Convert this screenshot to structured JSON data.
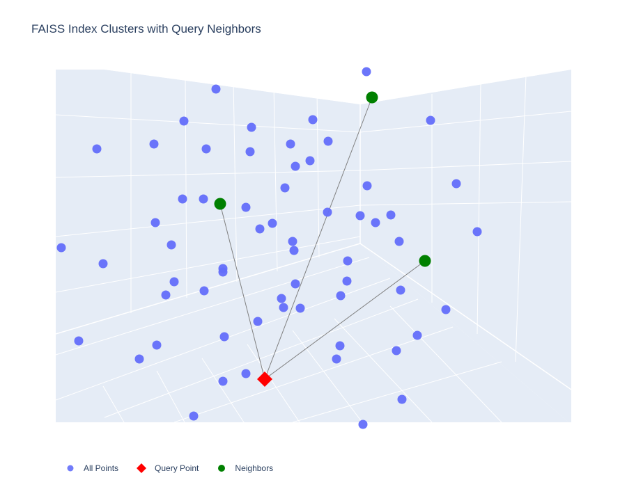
{
  "chart_data": {
    "type": "scatter",
    "subtype": "3d-scatter",
    "title": "FAISS Index Clusters with Query Neighbors",
    "grid": true,
    "legend_position": "bottom-left, horizontal",
    "series": [
      {
        "name": "All Points",
        "marker": "circle",
        "color": "#636efa",
        "points": [
          [
            526,
            103
          ],
          [
            310,
            128
          ],
          [
            264,
            174
          ],
          [
            361,
            183
          ],
          [
            449,
            172
          ],
          [
            618,
            173
          ],
          [
            139,
            214
          ],
          [
            221,
            207
          ],
          [
            296,
            214
          ],
          [
            359,
            218
          ],
          [
            417,
            207
          ],
          [
            471,
            203
          ],
          [
            424,
            239
          ],
          [
            445,
            231
          ],
          [
            409,
            270
          ],
          [
            527,
            267
          ],
          [
            655,
            264
          ],
          [
            262,
            286
          ],
          [
            292,
            286
          ],
          [
            353,
            298
          ],
          [
            470,
            305
          ],
          [
            517,
            310
          ],
          [
            561,
            309
          ],
          [
            539,
            320
          ],
          [
            223,
            320
          ],
          [
            391,
            321
          ],
          [
            373,
            329
          ],
          [
            685,
            333
          ],
          [
            88,
            356
          ],
          [
            246,
            352
          ],
          [
            420,
            347
          ],
          [
            573,
            347
          ],
          [
            422,
            360
          ],
          [
            148,
            379
          ],
          [
            320,
            386
          ],
          [
            320,
            391
          ],
          [
            499,
            375
          ],
          [
            250,
            405
          ],
          [
            424,
            408
          ],
          [
            498,
            404
          ],
          [
            293,
            418
          ],
          [
            238,
            424
          ],
          [
            489,
            425
          ],
          [
            575,
            417
          ],
          [
            404,
            429
          ],
          [
            407,
            442
          ],
          [
            431,
            443
          ],
          [
            640,
            445
          ],
          [
            370,
            462
          ],
          [
            113,
            490
          ],
          [
            225,
            496
          ],
          [
            322,
            484
          ],
          [
            488,
            497
          ],
          [
            599,
            482
          ],
          [
            200,
            516
          ],
          [
            483,
            516
          ],
          [
            569,
            504
          ],
          [
            353,
            537
          ],
          [
            320,
            548
          ],
          [
            577,
            574
          ],
          [
            278,
            598
          ],
          [
            521,
            610
          ]
        ]
      },
      {
        "name": "Query Point",
        "marker": "diamond",
        "color": "#ff0000",
        "points": [
          [
            380,
            545
          ]
        ]
      },
      {
        "name": "Neighbors",
        "marker": "circle",
        "color": "#008000",
        "points": [
          [
            534,
            140
          ],
          [
            316,
            293
          ],
          [
            610,
            375
          ]
        ]
      }
    ]
  }
}
